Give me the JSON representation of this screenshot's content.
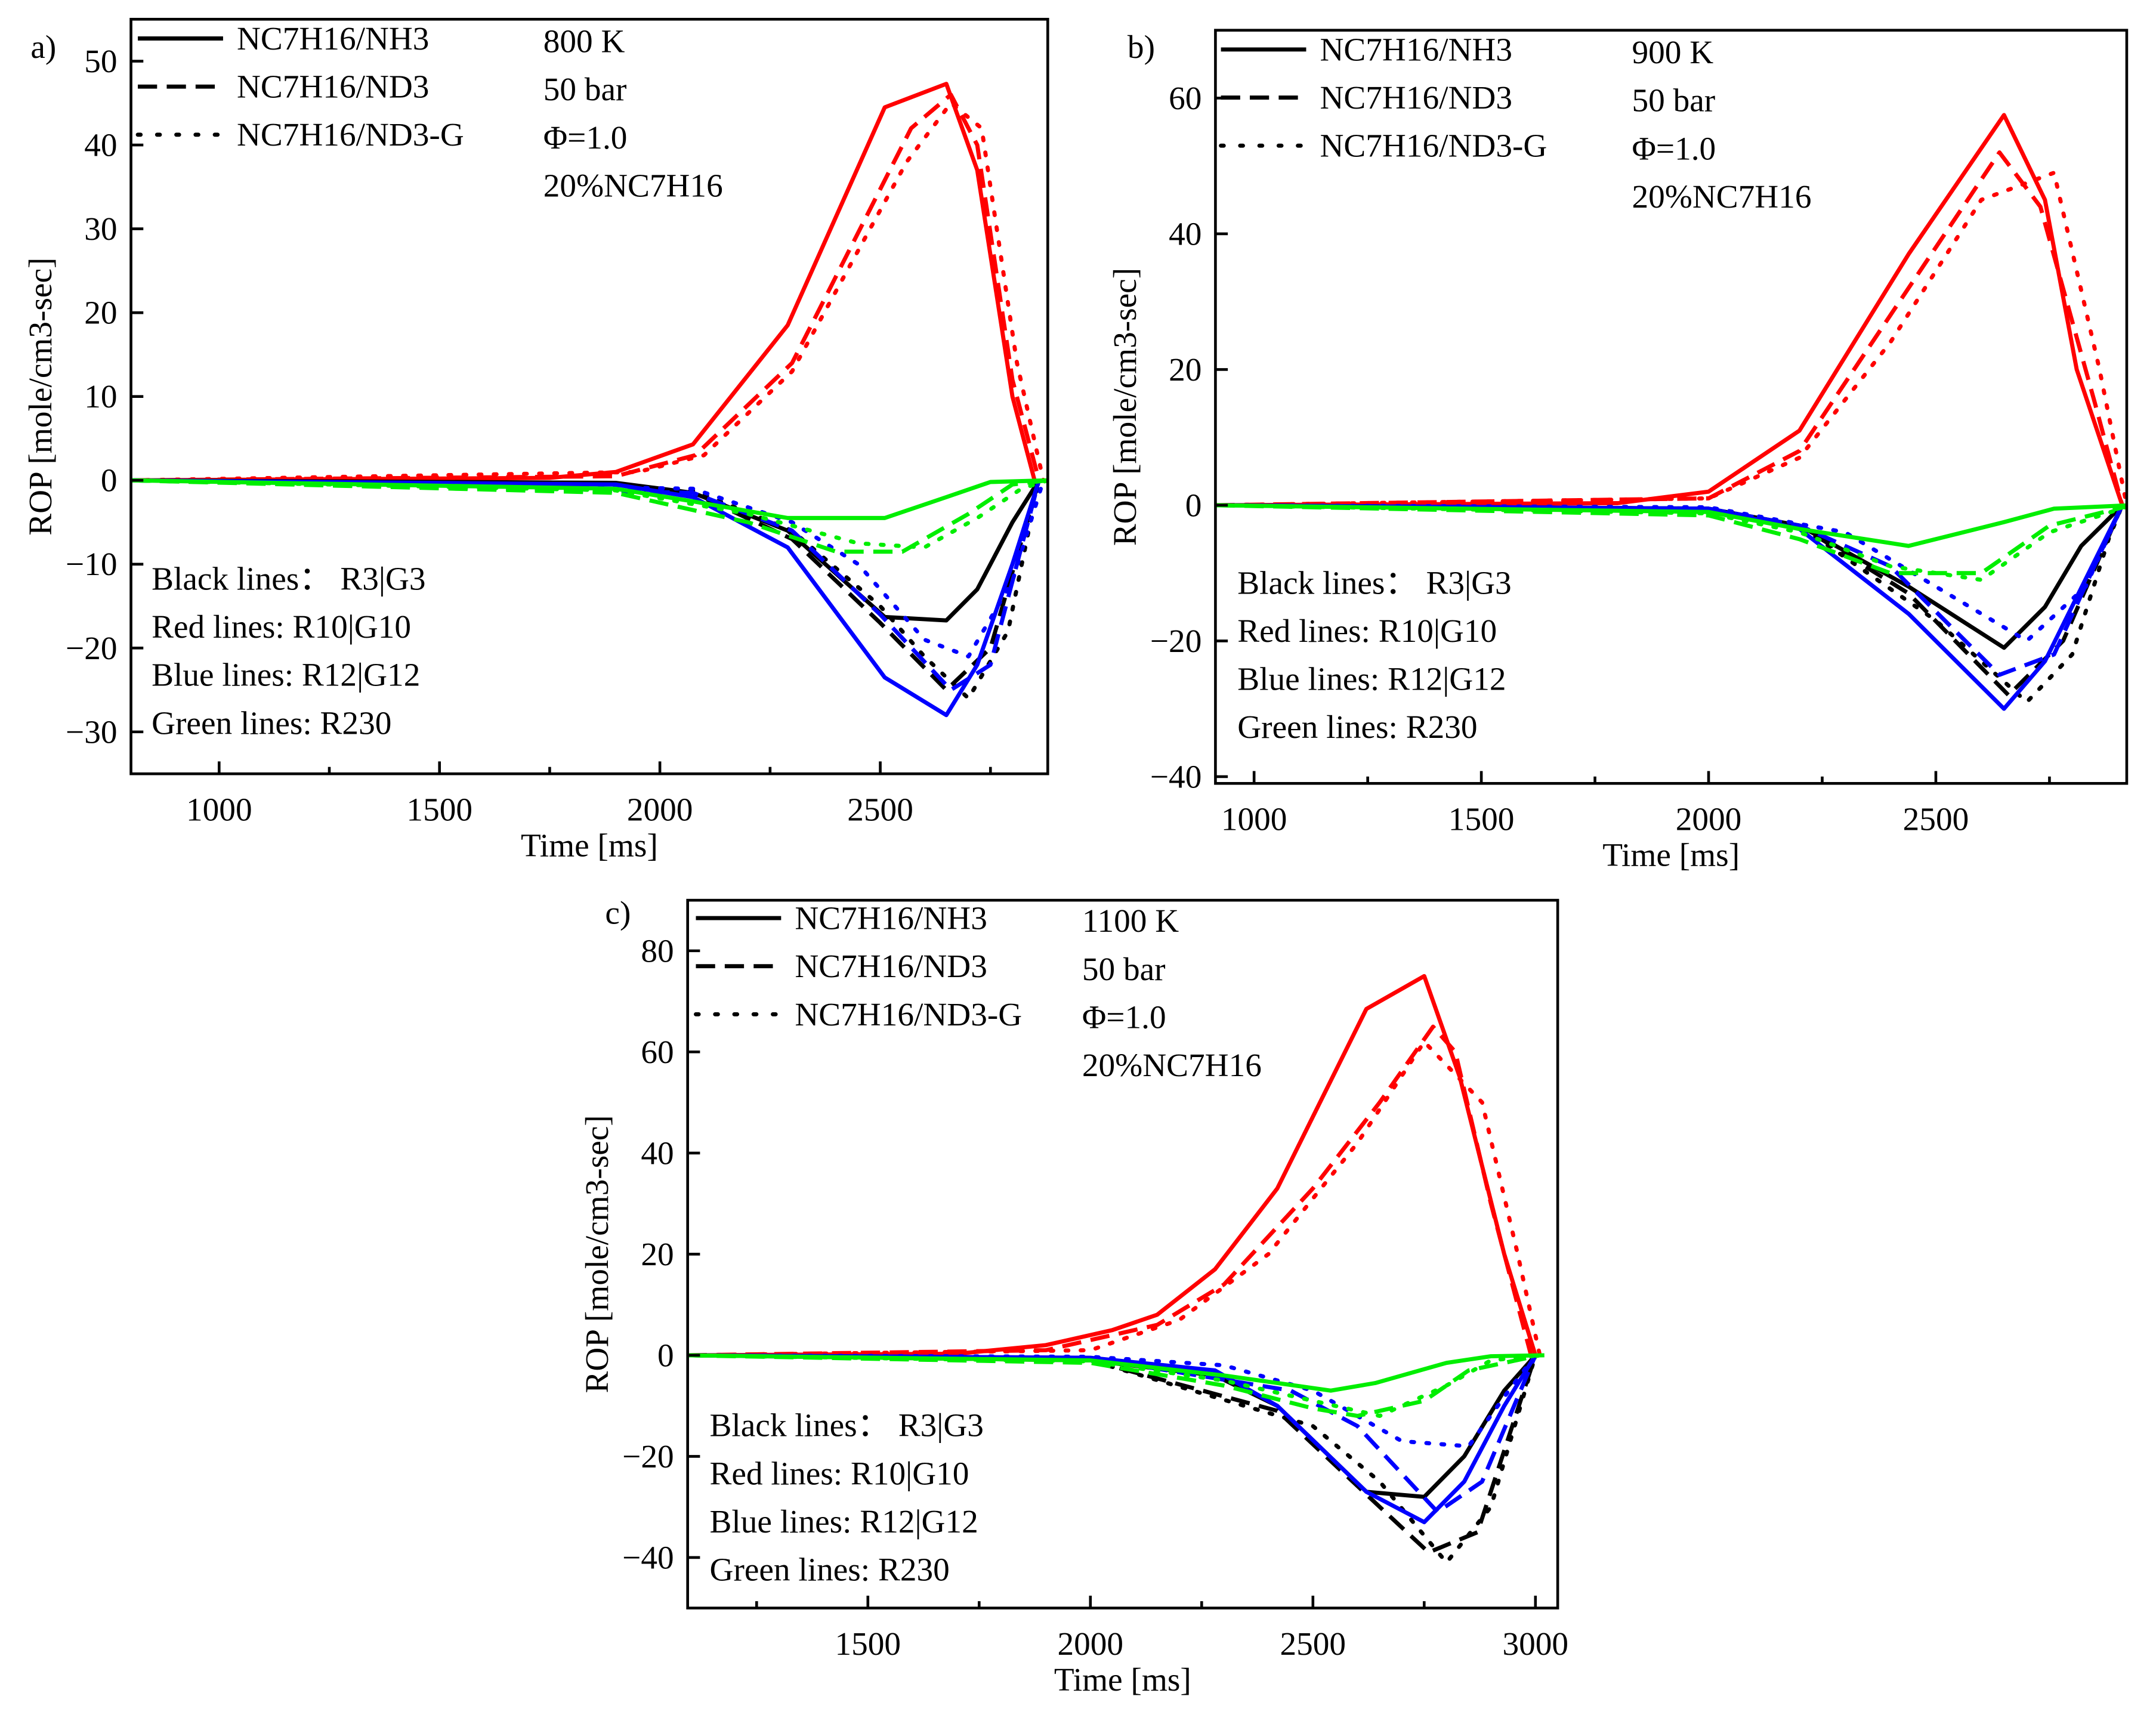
{
  "colors": {
    "R3|G3": "#000000",
    "R10|G10": "#ff0000",
    "R12|G12": "#0000ff",
    "R230": "#00ee00"
  },
  "chart_data": [
    {
      "type": "line",
      "panel_label": "a)",
      "xlabel": "Time [ms]",
      "ylabel": "ROP [mole/cm3-sec]",
      "xlim": [
        800,
        2880
      ],
      "ylim": [
        -35,
        55
      ],
      "xticks": [
        1000,
        1500,
        2000,
        2500
      ],
      "yticks": [
        -30,
        -20,
        -10,
        0,
        10,
        20,
        30,
        40,
        50
      ],
      "ytick_labels": [
        "−30",
        "−20",
        "−10",
        "0",
        "10",
        "20",
        "30",
        "40",
        "50"
      ],
      "legend": [
        "NC7H16/NH3",
        "NC7H16/ND3",
        "NC7H16/ND3-G"
      ],
      "conditions": [
        "800 K",
        "50 bar",
        "Φ=1.0",
        "20%NC7H16"
      ],
      "notes": [
        "Black lines： R3|G3",
        "Red lines: R10|G10",
        "Blue lines: R12|G12",
        "Green lines: R230"
      ],
      "series": [
        {
          "reaction": "R10|G10",
          "case": "NC7H16/NH3",
          "style": "solid",
          "x": [
            800,
            1750,
            1900,
            2075,
            2290,
            2510,
            2650,
            2720,
            2800,
            2850
          ],
          "y": [
            0,
            0.3,
            1,
            4.3,
            18.5,
            44.5,
            47.3,
            37,
            10,
            0
          ]
        },
        {
          "reaction": "R10|G10",
          "case": "NC7H16/ND3",
          "style": "dashed",
          "x": [
            800,
            1900,
            2080,
            2300,
            2570,
            2660,
            2720,
            2800,
            2860
          ],
          "y": [
            0,
            0.5,
            3,
            14,
            42,
            46,
            40,
            12,
            0
          ]
        },
        {
          "reaction": "R10|G10",
          "case": "NC7H16/ND3-G",
          "style": "dotted",
          "x": [
            800,
            1950,
            2100,
            2300,
            2560,
            2660,
            2730,
            2810,
            2870
          ],
          "y": [
            0,
            1,
            3,
            13,
            38,
            45,
            42,
            14,
            0
          ]
        },
        {
          "reaction": "R3|G3",
          "case": "NC7H16/NH3",
          "style": "solid",
          "x": [
            800,
            1900,
            2075,
            2290,
            2510,
            2650,
            2720,
            2800,
            2860
          ],
          "y": [
            0,
            -0.3,
            -1.5,
            -6,
            -16.3,
            -16.7,
            -13,
            -5,
            0
          ]
        },
        {
          "reaction": "R3|G3",
          "case": "NC7H16/ND3",
          "style": "dashed",
          "x": [
            800,
            2075,
            2300,
            2500,
            2650,
            2750,
            2860
          ],
          "y": [
            0,
            -1.5,
            -7,
            -17,
            -25,
            -20,
            0
          ]
        },
        {
          "reaction": "R3|G3",
          "case": "NC7H16/ND3-G",
          "style": "dotted",
          "x": [
            800,
            2075,
            2300,
            2500,
            2600,
            2700,
            2790,
            2860
          ],
          "y": [
            0,
            -1.2,
            -6,
            -15,
            -21,
            -26,
            -18,
            0
          ]
        },
        {
          "reaction": "R12|G12",
          "case": "NC7H16/NH3",
          "style": "solid",
          "x": [
            800,
            1900,
            2075,
            2290,
            2510,
            2650,
            2720,
            2800,
            2860
          ],
          "y": [
            0,
            -0.5,
            -2,
            -8,
            -23.5,
            -28,
            -22,
            -10,
            0
          ]
        },
        {
          "reaction": "R12|G12",
          "case": "NC7H16/ND3",
          "style": "dashed",
          "x": [
            800,
            2075,
            2300,
            2500,
            2660,
            2750,
            2860
          ],
          "y": [
            0,
            -1.5,
            -6,
            -16,
            -25,
            -22,
            0
          ]
        },
        {
          "reaction": "R12|G12",
          "case": "NC7H16/ND3-G",
          "style": "dotted",
          "x": [
            800,
            2075,
            2300,
            2450,
            2600,
            2700,
            2800,
            2870
          ],
          "y": [
            0,
            -1,
            -5,
            -10,
            -19,
            -21,
            -12,
            0
          ]
        },
        {
          "reaction": "R230",
          "case": "NC7H16/NH3",
          "style": "solid",
          "x": [
            800,
            1900,
            2075,
            2290,
            2510,
            2650,
            2750,
            2880
          ],
          "y": [
            0,
            -1,
            -2.5,
            -4.5,
            -4.5,
            -2,
            -0.2,
            0
          ]
        },
        {
          "reaction": "R230",
          "case": "NC7H16/ND3",
          "style": "dashed",
          "x": [
            800,
            1900,
            2200,
            2400,
            2550,
            2700,
            2800,
            2880
          ],
          "y": [
            0,
            -1.5,
            -5,
            -8.5,
            -8.5,
            -4,
            -0.5,
            0
          ]
        },
        {
          "reaction": "R230",
          "case": "NC7H16/ND3-G",
          "style": "dotted",
          "x": [
            800,
            1900,
            2200,
            2450,
            2600,
            2720,
            2820,
            2880
          ],
          "y": [
            0,
            -1.2,
            -4,
            -7.5,
            -8,
            -4.5,
            -1,
            0
          ]
        }
      ]
    },
    {
      "type": "line",
      "panel_label": "b)",
      "xlabel": "Time [ms]",
      "ylabel": "ROP [mole/cm3-sec]",
      "xlim": [
        915,
        2920
      ],
      "ylim": [
        -41,
        70
      ],
      "xticks": [
        1000,
        1500,
        2000,
        2500
      ],
      "yticks": [
        -40,
        -20,
        0,
        20,
        40,
        60
      ],
      "ytick_labels": [
        "−40",
        "−20",
        "0",
        "20",
        "40",
        "60"
      ],
      "legend": [
        "NC7H16/NH3",
        "NC7H16/ND3",
        "NC7H16/ND3-G"
      ],
      "conditions": [
        "900 K",
        "50 bar",
        "Φ=1.0",
        "20%NC7H16"
      ],
      "notes": [
        "Black lines： R3|G3",
        "Red lines: R10|G10",
        "Blue lines: R12|G12",
        "Green lines: R230"
      ],
      "series": [
        {
          "reaction": "R10|G10",
          "case": "NC7H16/NH3",
          "style": "solid",
          "x": [
            915,
            1800,
            2000,
            2200,
            2440,
            2650,
            2740,
            2810,
            2910
          ],
          "y": [
            0,
            0.3,
            2,
            11,
            37,
            57.5,
            45,
            20,
            0
          ]
        },
        {
          "reaction": "R10|G10",
          "case": "NC7H16/ND3",
          "style": "dashed",
          "x": [
            915,
            2000,
            2200,
            2400,
            2640,
            2730,
            2850,
            2910
          ],
          "y": [
            0,
            1,
            8,
            28,
            52,
            44,
            15,
            0
          ]
        },
        {
          "reaction": "R10|G10",
          "case": "NC7H16/ND3-G",
          "style": "dotted",
          "x": [
            915,
            2000,
            2200,
            2400,
            2600,
            2760,
            2860,
            2920
          ],
          "y": [
            0,
            1,
            7,
            24,
            45,
            49,
            20,
            0
          ]
        },
        {
          "reaction": "R3|G3",
          "case": "NC7H16/NH3",
          "style": "solid",
          "x": [
            915,
            2000,
            2200,
            2440,
            2650,
            2740,
            2820,
            2880,
            2910
          ],
          "y": [
            0,
            -0.5,
            -3,
            -12,
            -21,
            -15,
            -6,
            -2,
            0
          ]
        },
        {
          "reaction": "R3|G3",
          "case": "NC7H16/ND3",
          "style": "dashed",
          "x": [
            915,
            2000,
            2200,
            2440,
            2660,
            2780,
            2910
          ],
          "y": [
            0,
            -0.5,
            -3,
            -13,
            -28,
            -20,
            0
          ]
        },
        {
          "reaction": "R3|G3",
          "case": "NC7H16/ND3-G",
          "style": "dotted",
          "x": [
            915,
            2000,
            2200,
            2500,
            2700,
            2800,
            2880,
            2910
          ],
          "y": [
            0,
            -0.5,
            -3,
            -17,
            -29,
            -22,
            -5,
            0
          ]
        },
        {
          "reaction": "R12|G12",
          "case": "NC7H16/NH3",
          "style": "solid",
          "x": [
            915,
            2000,
            2200,
            2440,
            2650,
            2740,
            2910
          ],
          "y": [
            0,
            -0.5,
            -3.5,
            -16,
            -30,
            -23,
            0
          ]
        },
        {
          "reaction": "R12|G12",
          "case": "NC7H16/ND3",
          "style": "dashed",
          "x": [
            915,
            2000,
            2200,
            2400,
            2640,
            2760,
            2910
          ],
          "y": [
            0,
            -0.5,
            -3,
            -9,
            -25,
            -22,
            0
          ]
        },
        {
          "reaction": "R12|G12",
          "case": "NC7H16/ND3-G",
          "style": "dotted",
          "x": [
            915,
            2000,
            2300,
            2500,
            2700,
            2830,
            2910
          ],
          "y": [
            0,
            -0.3,
            -4,
            -12,
            -20,
            -12,
            0
          ]
        },
        {
          "reaction": "R230",
          "case": "NC7H16/NH3",
          "style": "solid",
          "x": [
            915,
            2000,
            2200,
            2440,
            2650,
            2760,
            2930
          ],
          "y": [
            0,
            -1,
            -3.5,
            -6,
            -2.5,
            -0.5,
            0
          ]
        },
        {
          "reaction": "R230",
          "case": "NC7H16/ND3",
          "style": "dashed",
          "x": [
            915,
            2000,
            2200,
            2400,
            2600,
            2750,
            2930
          ],
          "y": [
            0,
            -1.5,
            -5,
            -10,
            -10,
            -3,
            0
          ]
        },
        {
          "reaction": "R230",
          "case": "NC7H16/ND3-G",
          "style": "dotted",
          "x": [
            915,
            2000,
            2200,
            2400,
            2600,
            2750,
            2930
          ],
          "y": [
            0,
            -1.2,
            -4,
            -9,
            -11,
            -4,
            0
          ]
        }
      ]
    },
    {
      "type": "line",
      "panel_label": "c)",
      "xlabel": "Time [ms]",
      "ylabel": "ROP [mole/cm3-sec]",
      "xlim": [
        1095,
        3050
      ],
      "ylim": [
        -50,
        90
      ],
      "xticks": [
        1500,
        2000,
        2500,
        3000
      ],
      "yticks": [
        -40,
        -20,
        0,
        20,
        40,
        60,
        80
      ],
      "ytick_labels": [
        "−40",
        "−20",
        "0",
        "20",
        "40",
        "60",
        "80"
      ],
      "legend": [
        "NC7H16/NH3",
        "NC7H16/ND3",
        "NC7H16/ND3-G"
      ],
      "conditions": [
        "1100 K",
        "50 bar",
        "Φ=1.0",
        "20%NC7H16"
      ],
      "notes": [
        "Black lines： R3|G3",
        "Red lines: R10|G10",
        "Blue lines: R12|G12",
        "Green lines: R230"
      ],
      "series": [
        {
          "reaction": "R10|G10",
          "case": "NC7H16/NH3",
          "style": "solid",
          "x": [
            1095,
            1700,
            1900,
            2050,
            2150,
            2280,
            2420,
            2620,
            2750,
            2830,
            2930,
            3000
          ],
          "y": [
            0,
            0.3,
            2,
            5,
            8,
            17,
            33,
            68.5,
            75,
            55,
            20,
            0
          ]
        },
        {
          "reaction": "R10|G10",
          "case": "NC7H16/ND3",
          "style": "dashed",
          "x": [
            1095,
            1900,
            2150,
            2300,
            2500,
            2650,
            2770,
            2820,
            2900,
            2990
          ],
          "y": [
            0,
            1,
            6,
            14,
            33,
            50,
            65,
            60,
            30,
            0
          ]
        },
        {
          "reaction": "R10|G10",
          "case": "NC7H16/ND3-G",
          "style": "dotted",
          "x": [
            1095,
            2000,
            2200,
            2400,
            2600,
            2750,
            2880,
            2960,
            3010
          ],
          "y": [
            0,
            1,
            7,
            20,
            42,
            62,
            50,
            20,
            0
          ]
        },
        {
          "reaction": "R3|G3",
          "case": "NC7H16/NH3",
          "style": "solid",
          "x": [
            1095,
            2000,
            2280,
            2420,
            2620,
            2750,
            2840,
            2930,
            3000
          ],
          "y": [
            0,
            -1,
            -4,
            -10,
            -27,
            -28,
            -20,
            -7,
            0
          ]
        },
        {
          "reaction": "R3|G3",
          "case": "NC7H16/ND3",
          "style": "dashed",
          "x": [
            1095,
            2000,
            2420,
            2650,
            2760,
            2870,
            3000
          ],
          "y": [
            0,
            -1,
            -11,
            -30,
            -39,
            -35,
            0
          ]
        },
        {
          "reaction": "R3|G3",
          "case": "NC7H16/ND3-G",
          "style": "dotted",
          "x": [
            1095,
            2000,
            2500,
            2650,
            2800,
            2900,
            3000
          ],
          "y": [
            0,
            -1,
            -14,
            -25,
            -41,
            -30,
            0
          ]
        },
        {
          "reaction": "R12|G12",
          "case": "NC7H16/NH3",
          "style": "solid",
          "x": [
            1095,
            2000,
            2280,
            2420,
            2620,
            2750,
            2840,
            2930,
            3000
          ],
          "y": [
            0,
            -0.5,
            -3,
            -10,
            -27,
            -33,
            -25,
            -10,
            0
          ]
        },
        {
          "reaction": "R12|G12",
          "case": "NC7H16/ND3",
          "style": "dashed",
          "x": [
            1095,
            2000,
            2450,
            2600,
            2780,
            2880,
            3000
          ],
          "y": [
            0,
            -0.5,
            -7,
            -14,
            -31,
            -25,
            0
          ]
        },
        {
          "reaction": "R12|G12",
          "case": "NC7H16/ND3-G",
          "style": "dotted",
          "x": [
            1095,
            2000,
            2300,
            2500,
            2700,
            2850,
            2940,
            3000
          ],
          "y": [
            0,
            -0.3,
            -2,
            -7,
            -17,
            -18,
            -7,
            0
          ]
        },
        {
          "reaction": "R230",
          "case": "NC7H16/NH3",
          "style": "solid",
          "x": [
            1095,
            2000,
            2300,
            2540,
            2640,
            2800,
            2900,
            3020
          ],
          "y": [
            0,
            -1,
            -4,
            -7,
            -5.5,
            -1.5,
            -0.2,
            0
          ]
        },
        {
          "reaction": "R230",
          "case": "NC7H16/ND3",
          "style": "dashed",
          "x": [
            1095,
            2000,
            2300,
            2500,
            2600,
            2750,
            2850,
            3010
          ],
          "y": [
            0,
            -1.5,
            -6,
            -10.5,
            -12,
            -9,
            -3,
            0
          ]
        },
        {
          "reaction": "R230",
          "case": "NC7H16/ND3-G",
          "style": "dotted",
          "x": [
            1095,
            2000,
            2300,
            2500,
            2650,
            2800,
            2900,
            3010
          ],
          "y": [
            0,
            -1.2,
            -5,
            -9,
            -12,
            -6,
            -1,
            0
          ]
        }
      ]
    }
  ]
}
